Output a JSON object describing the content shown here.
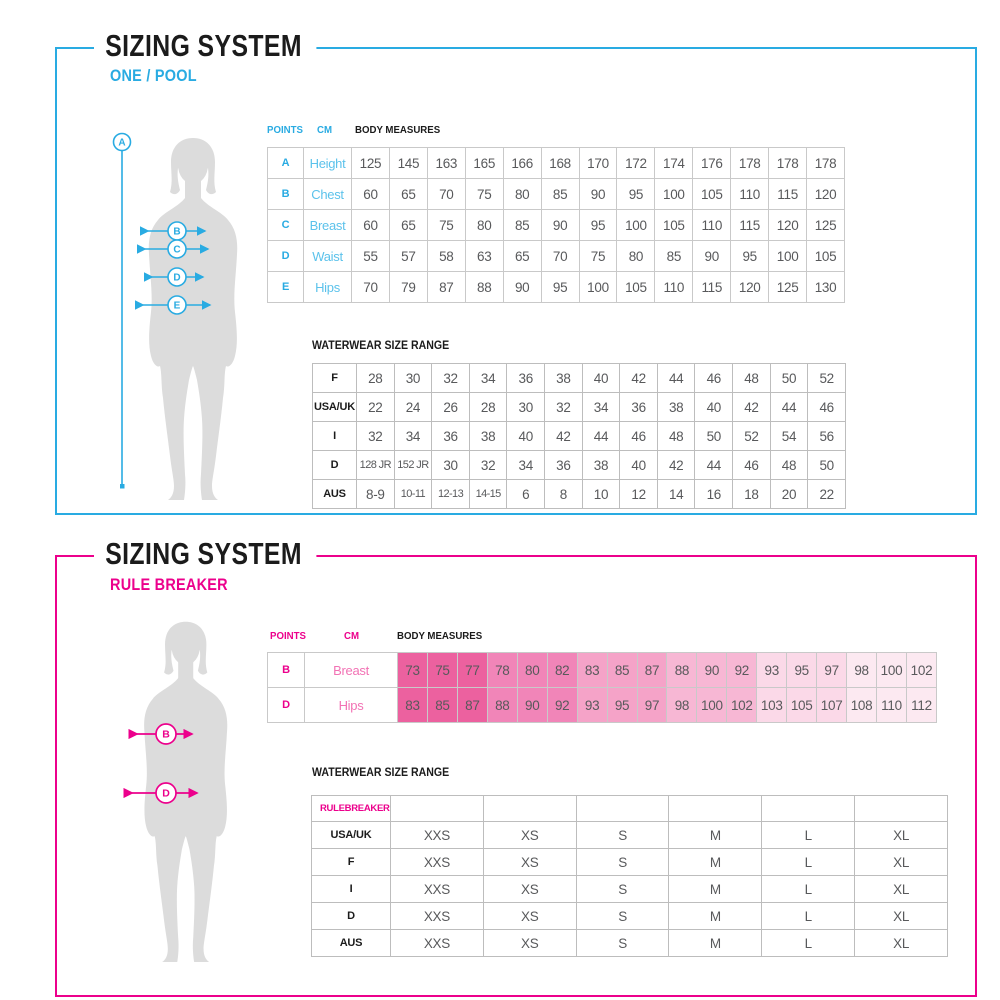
{
  "sections": [
    {
      "title": "SIZING SYSTEM",
      "subtitle": "ONE / POOL",
      "accent": "#29ABE2",
      "header": {
        "points": "POINTS",
        "cm": "CM",
        "measures": "BODY MEASURES"
      },
      "body_measures": {
        "rows": [
          {
            "point": "A",
            "label": "Height",
            "values": [
              "125",
              "145",
              "163",
              "165",
              "166",
              "168",
              "170",
              "172",
              "174",
              "176",
              "178",
              "178",
              "178"
            ]
          },
          {
            "point": "B",
            "label": "Chest",
            "values": [
              "60",
              "65",
              "70",
              "75",
              "80",
              "85",
              "90",
              "95",
              "100",
              "105",
              "110",
              "115",
              "120"
            ]
          },
          {
            "point": "C",
            "label": "Breast",
            "values": [
              "60",
              "65",
              "75",
              "80",
              "85",
              "90",
              "95",
              "100",
              "105",
              "110",
              "115",
              "120",
              "125"
            ]
          },
          {
            "point": "D",
            "label": "Waist",
            "values": [
              "55",
              "57",
              "58",
              "63",
              "65",
              "70",
              "75",
              "80",
              "85",
              "90",
              "95",
              "100",
              "105"
            ]
          },
          {
            "point": "E",
            "label": "Hips",
            "values": [
              "70",
              "79",
              "87",
              "88",
              "90",
              "95",
              "100",
              "105",
              "110",
              "115",
              "120",
              "125",
              "130"
            ]
          }
        ]
      },
      "waterwear_label": "WATERWEAR SIZE RANGE",
      "waterwear": {
        "rows": [
          {
            "label": "F",
            "values": [
              "28",
              "30",
              "32",
              "34",
              "36",
              "38",
              "40",
              "42",
              "44",
              "46",
              "48",
              "50",
              "52"
            ]
          },
          {
            "label": "USA/UK",
            "values": [
              "22",
              "24",
              "26",
              "28",
              "30",
              "32",
              "34",
              "36",
              "38",
              "40",
              "42",
              "44",
              "46"
            ]
          },
          {
            "label": "I",
            "values": [
              "32",
              "34",
              "36",
              "38",
              "40",
              "42",
              "44",
              "46",
              "48",
              "50",
              "52",
              "54",
              "56"
            ]
          },
          {
            "label": "D",
            "values": [
              "128 JR",
              "152 JR",
              "30",
              "32",
              "34",
              "36",
              "38",
              "40",
              "42",
              "44",
              "46",
              "48",
              "50"
            ]
          },
          {
            "label": "AUS",
            "values": [
              "8-9",
              "10-11",
              "12-13",
              "14-15",
              "6",
              "8",
              "10",
              "12",
              "14",
              "16",
              "18",
              "20",
              "22"
            ]
          }
        ]
      },
      "figure": {
        "height_point": "A",
        "points": [
          "B",
          "C",
          "D",
          "E"
        ]
      }
    },
    {
      "title": "SIZING SYSTEM",
      "subtitle": "RULE BREAKER",
      "accent": "#EC008C",
      "header": {
        "points": "POINTS",
        "cm": "CM",
        "measures": "BODY MEASURES"
      },
      "body_measures": {
        "cell_colors": [
          "#EC619F",
          "#F185B8",
          "#F5A3C8",
          "#F7B7D4",
          "#FBD9E8",
          "#FCE9F1"
        ],
        "rows": [
          {
            "point": "B",
            "label": "Breast",
            "values": [
              "73",
              "75",
              "77",
              "78",
              "80",
              "82",
              "83",
              "85",
              "87",
              "88",
              "90",
              "92",
              "93",
              "95",
              "97",
              "98",
              "100",
              "102"
            ]
          },
          {
            "point": "D",
            "label": "Hips",
            "values": [
              "83",
              "85",
              "87",
              "88",
              "90",
              "92",
              "93",
              "95",
              "97",
              "98",
              "100",
              "102",
              "103",
              "105",
              "107",
              "108",
              "110",
              "112"
            ]
          }
        ]
      },
      "waterwear_label": "WATERWEAR SIZE RANGE",
      "waterwear": {
        "header_label": "RULEBREAKER",
        "cols": 6,
        "rows": [
          {
            "label": "USA/UK",
            "values": [
              "XXS",
              "XS",
              "S",
              "M",
              "L",
              "XL"
            ]
          },
          {
            "label": "F",
            "values": [
              "XXS",
              "XS",
              "S",
              "M",
              "L",
              "XL"
            ]
          },
          {
            "label": "I",
            "values": [
              "XXS",
              "XS",
              "S",
              "M",
              "L",
              "XL"
            ]
          },
          {
            "label": "D",
            "values": [
              "XXS",
              "XS",
              "S",
              "M",
              "L",
              "XL"
            ]
          },
          {
            "label": "AUS",
            "values": [
              "XXS",
              "XS",
              "S",
              "M",
              "L",
              "XL"
            ]
          }
        ]
      },
      "figure": {
        "points": [
          "B",
          "D"
        ]
      }
    }
  ]
}
